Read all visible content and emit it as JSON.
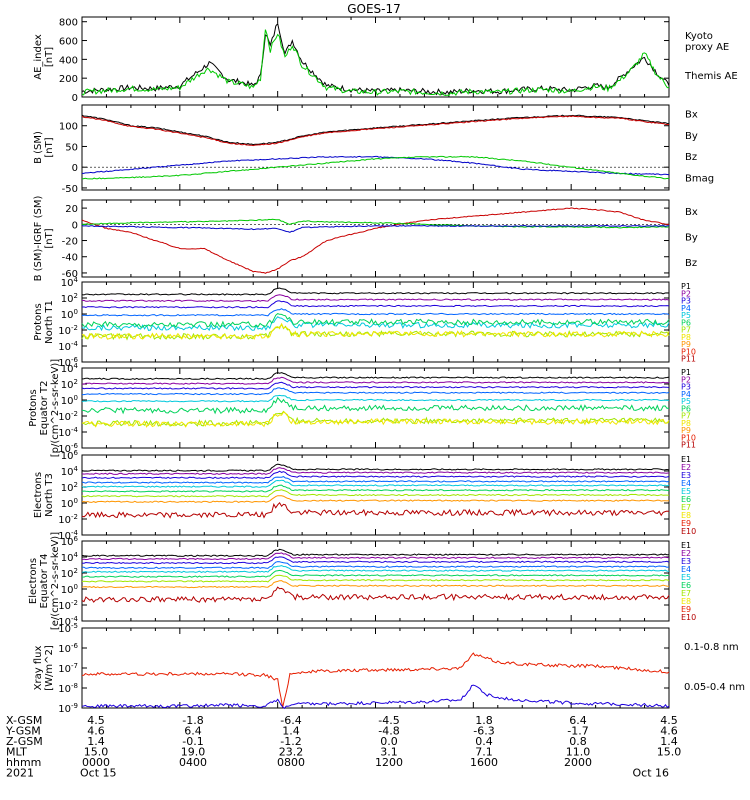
{
  "title": "GOES-17",
  "chart_data": [
    {
      "type": "line",
      "ylabel": "AE_index\n[nT]",
      "ylim": [
        0,
        850
      ],
      "yticks": [
        "800",
        "600",
        "400",
        "200",
        "0"
      ],
      "legend": [
        {
          "name": "Kyoto\nproxy AE",
          "color": "#00c800"
        },
        {
          "name": "Themis AE",
          "color": "#000000"
        }
      ],
      "series": [
        {
          "name": "Themis AE",
          "color": "#000000",
          "x": [
            0,
            1,
            2,
            3,
            4,
            5,
            5.2,
            6,
            6.5,
            7,
            7.3,
            7.5,
            7.7,
            8,
            8.3,
            8.6,
            9,
            10,
            11,
            12,
            13,
            14,
            15,
            16,
            17,
            18,
            19,
            20,
            20.5,
            21,
            21.5,
            22,
            22.5,
            23,
            23.5,
            24
          ],
          "y": [
            60,
            80,
            100,
            90,
            120,
            320,
            360,
            180,
            160,
            120,
            220,
            680,
            540,
            800,
            460,
            600,
            380,
            120,
            80,
            60,
            70,
            60,
            50,
            70,
            60,
            80,
            90,
            70,
            100,
            120,
            100,
            200,
            320,
            420,
            260,
            120
          ]
        },
        {
          "name": "Kyoto proxy AE",
          "color": "#00c800",
          "x": [
            0,
            1,
            2,
            3,
            4,
            5,
            5.2,
            6,
            6.5,
            7,
            7.3,
            7.5,
            7.7,
            8,
            8.3,
            8.6,
            9,
            10,
            11,
            12,
            13,
            14,
            15,
            16,
            17,
            18,
            19,
            20,
            20.5,
            21,
            21.5,
            22,
            22.5,
            23,
            23.5,
            24
          ],
          "y": [
            50,
            70,
            90,
            80,
            100,
            280,
            300,
            160,
            140,
            100,
            200,
            740,
            500,
            680,
            420,
            560,
            340,
            100,
            60,
            50,
            60,
            50,
            40,
            60,
            50,
            70,
            80,
            60,
            90,
            110,
            90,
            180,
            300,
            460,
            240,
            100
          ]
        }
      ]
    },
    {
      "type": "line",
      "ylabel": "B (SM)\n[nT]",
      "ylim": [
        -55,
        150
      ],
      "yticks": [
        "100",
        "50",
        "0",
        "-50"
      ],
      "legend": [
        {
          "name": "Bx",
          "color": "#0000c8"
        },
        {
          "name": "By",
          "color": "#00c800"
        },
        {
          "name": "Bz",
          "color": "#c80000"
        },
        {
          "name": "Bmag",
          "color": "#000000"
        }
      ],
      "series": [
        {
          "name": "Bmag",
          "color": "#000000",
          "x": [
            0,
            1,
            2,
            3,
            4,
            5,
            6,
            7,
            8,
            9,
            10,
            12,
            14,
            16,
            18,
            20,
            21,
            22,
            23,
            24
          ],
          "y": [
            125,
            115,
            100,
            95,
            85,
            75,
            60,
            55,
            60,
            75,
            85,
            95,
            103,
            112,
            120,
            125,
            122,
            120,
            112,
            105
          ]
        },
        {
          "name": "Bz",
          "color": "#c80000",
          "x": [
            0,
            1,
            2,
            3,
            4,
            5,
            6,
            7,
            8,
            9,
            10,
            12,
            14,
            16,
            18,
            20,
            21,
            22,
            23,
            24
          ],
          "y": [
            122,
            112,
            98,
            92,
            82,
            72,
            58,
            52,
            58,
            73,
            83,
            93,
            101,
            110,
            118,
            123,
            120,
            118,
            110,
            103
          ]
        },
        {
          "name": "Bx",
          "color": "#0000c8",
          "x": [
            0,
            2,
            4,
            6,
            8,
            10,
            12,
            14,
            16,
            18,
            20,
            22,
            24
          ],
          "y": [
            -15,
            -5,
            5,
            15,
            20,
            25,
            25,
            20,
            10,
            -5,
            -10,
            -15,
            -18
          ]
        },
        {
          "name": "By",
          "color": "#00c800",
          "x": [
            0,
            2,
            4,
            6,
            8,
            10,
            12,
            14,
            16,
            18,
            20,
            22,
            24
          ],
          "y": [
            -28,
            -25,
            -20,
            -10,
            0,
            10,
            20,
            25,
            25,
            15,
            0,
            -15,
            -28
          ]
        }
      ]
    },
    {
      "type": "line",
      "ylabel": "B (SM)-IGRF (SM)\n[nT]",
      "ylim": [
        -65,
        30
      ],
      "yticks": [
        "20",
        "0",
        "-20",
        "-40",
        "-60"
      ],
      "legend": [
        {
          "name": "Bx",
          "color": "#0000c8"
        },
        {
          "name": "By",
          "color": "#00c800"
        },
        {
          "name": "Bz",
          "color": "#c80000"
        }
      ],
      "series": [
        {
          "name": "Bz",
          "color": "#c80000",
          "x": [
            0,
            1,
            2,
            3,
            4,
            5,
            6,
            7,
            7.5,
            8,
            8.5,
            9,
            10,
            12,
            14,
            16,
            18,
            20,
            21,
            22,
            23,
            24
          ],
          "y": [
            5,
            -5,
            -10,
            -20,
            -30,
            -30,
            -45,
            -58,
            -60,
            -55,
            -45,
            -40,
            -20,
            -5,
            5,
            10,
            15,
            20,
            18,
            15,
            5,
            0
          ]
        },
        {
          "name": "By",
          "color": "#00c800",
          "x": [
            0,
            2,
            4,
            6,
            7,
            8,
            8.5,
            9,
            10,
            12,
            14,
            16,
            18,
            20,
            22,
            24
          ],
          "y": [
            0,
            2,
            3,
            4,
            5,
            6,
            0,
            4,
            3,
            2,
            0,
            -2,
            -3,
            -3,
            -4,
            -3
          ]
        },
        {
          "name": "Bx",
          "color": "#0000c8",
          "x": [
            0,
            2,
            4,
            6,
            7,
            8,
            8.5,
            9,
            10,
            12,
            14,
            16,
            18,
            20,
            22,
            24
          ],
          "y": [
            -2,
            -3,
            -4,
            -5,
            -6,
            -5,
            -10,
            -4,
            -3,
            -2,
            -2,
            -2,
            -2,
            -2,
            -2,
            -2
          ]
        }
      ]
    },
    {
      "type": "line",
      "log": true,
      "ylabel": "Protons\nNorth T1",
      "ylim": [
        -6,
        4
      ],
      "yticks": [
        "10^4",
        "10^2",
        "10^0",
        "10^-2",
        "10^-4",
        "10^-6"
      ],
      "legend": [
        {
          "name": "P1",
          "color": "#000000"
        },
        {
          "name": "P2",
          "color": "#8a00a0"
        },
        {
          "name": "P3",
          "color": "#1e00dc"
        },
        {
          "name": "P4",
          "color": "#0064ff"
        },
        {
          "name": "P5",
          "color": "#00c8dc"
        },
        {
          "name": "P6",
          "color": "#00d25a"
        },
        {
          "name": "P7",
          "color": "#a0e600"
        },
        {
          "name": "P8",
          "color": "#f0e600"
        },
        {
          "name": "P9",
          "color": "#ff9600"
        },
        {
          "name": "P10",
          "color": "#e61e00"
        },
        {
          "name": "P11",
          "color": "#b40000"
        }
      ],
      "series": [
        {
          "name": "P1",
          "color": "#000000",
          "level": 2.6
        },
        {
          "name": "P2",
          "color": "#8a00a0",
          "level": 1.8
        },
        {
          "name": "P3",
          "color": "#1e00dc",
          "level": 1.0
        },
        {
          "name": "P4",
          "color": "#0064ff",
          "level": 0.0
        },
        {
          "name": "P5",
          "color": "#00c8dc",
          "level": -1.4
        },
        {
          "name": "P6",
          "color": "#00d25a",
          "level": -1.0
        },
        {
          "name": "P7",
          "color": "#a0e600",
          "level": -2.5
        },
        {
          "name": "P8",
          "color": "#f0e600",
          "level": -2.5
        }
      ]
    },
    {
      "type": "line",
      "log": true,
      "ylabel": "Protons\nEquator T2\n[p/(cm^2-s-sr-keV)]",
      "ylim": [
        -6,
        4
      ],
      "yticks": [
        "10^4",
        "10^2",
        "10^0",
        "10^-2",
        "10^-4",
        "10^-6"
      ],
      "legend": [
        {
          "name": "P1",
          "color": "#000000"
        },
        {
          "name": "P2",
          "color": "#8a00a0"
        },
        {
          "name": "P3",
          "color": "#1e00dc"
        },
        {
          "name": "P4",
          "color": "#0064ff"
        },
        {
          "name": "P5",
          "color": "#00c8dc"
        },
        {
          "name": "P6",
          "color": "#00d25a"
        },
        {
          "name": "P7",
          "color": "#a0e600"
        },
        {
          "name": "P8",
          "color": "#f0e600"
        },
        {
          "name": "P9",
          "color": "#ff9600"
        },
        {
          "name": "P10",
          "color": "#e61e00"
        },
        {
          "name": "P11",
          "color": "#b40000"
        }
      ],
      "series": [
        {
          "name": "P1",
          "color": "#000000",
          "level": 2.8
        },
        {
          "name": "P2",
          "color": "#8a00a0",
          "level": 2.2
        },
        {
          "name": "P3",
          "color": "#1e00dc",
          "level": 1.6
        },
        {
          "name": "P4",
          "color": "#0064ff",
          "level": 0.9
        },
        {
          "name": "P5",
          "color": "#00c8dc",
          "level": 0.0
        },
        {
          "name": "P6",
          "color": "#00d25a",
          "level": -1.0
        },
        {
          "name": "P7",
          "color": "#a0e600",
          "level": -2.6
        },
        {
          "name": "P8",
          "color": "#f0e600",
          "level": -2.7
        }
      ]
    },
    {
      "type": "line",
      "log": true,
      "ylabel": "Electrons\nNorth T3",
      "ylim": [
        -4,
        6
      ],
      "yticks": [
        "10^6",
        "10^4",
        "10^2",
        "10^0",
        "10^-2",
        "10^-4"
      ],
      "legend": [
        {
          "name": "E1",
          "color": "#000000"
        },
        {
          "name": "E2",
          "color": "#8a00a0"
        },
        {
          "name": "E3",
          "color": "#1e00dc"
        },
        {
          "name": "E4",
          "color": "#0064ff"
        },
        {
          "name": "E5",
          "color": "#00c8dc"
        },
        {
          "name": "E6",
          "color": "#00d25a"
        },
        {
          "name": "E7",
          "color": "#a0e600"
        },
        {
          "name": "E8",
          "color": "#f0e600"
        },
        {
          "name": "E9",
          "color": "#e61e00"
        },
        {
          "name": "E10",
          "color": "#b40000"
        }
      ],
      "series": [
        {
          "name": "E1",
          "color": "#000000",
          "level": 4.2
        },
        {
          "name": "E2",
          "color": "#8a00a0",
          "level": 3.8
        },
        {
          "name": "E3",
          "color": "#1e00dc",
          "level": 3.3
        },
        {
          "name": "E4",
          "color": "#0064ff",
          "level": 2.7
        },
        {
          "name": "E5",
          "color": "#00c8dc",
          "level": 2.2
        },
        {
          "name": "E6",
          "color": "#00d25a",
          "level": 1.6
        },
        {
          "name": "E7",
          "color": "#a0e600",
          "level": 1.0
        },
        {
          "name": "E8",
          "color": "#ff9600",
          "level": 0.3
        },
        {
          "name": "E9",
          "color": "#b40000",
          "level": -1.2
        }
      ]
    },
    {
      "type": "line",
      "log": true,
      "ylabel": "Electrons\nEquator T4\n[e/(cm^2-s-sr-keV)]",
      "ylim": [
        -4,
        6
      ],
      "yticks": [
        "10^6",
        "10^4",
        "10^2",
        "10^0",
        "10^-2",
        "10^-4"
      ],
      "legend": [
        {
          "name": "E1",
          "color": "#000000"
        },
        {
          "name": "E2",
          "color": "#8a00a0"
        },
        {
          "name": "E3",
          "color": "#1e00dc"
        },
        {
          "name": "E4",
          "color": "#0064ff"
        },
        {
          "name": "E5",
          "color": "#00c8dc"
        },
        {
          "name": "E6",
          "color": "#00d25a"
        },
        {
          "name": "E7",
          "color": "#a0e600"
        },
        {
          "name": "E8",
          "color": "#f0e600"
        },
        {
          "name": "E9",
          "color": "#e61e00"
        },
        {
          "name": "E10",
          "color": "#b40000"
        }
      ],
      "series": [
        {
          "name": "E1",
          "color": "#000000",
          "level": 4.3
        },
        {
          "name": "E2",
          "color": "#8a00a0",
          "level": 3.9
        },
        {
          "name": "E3",
          "color": "#1e00dc",
          "level": 3.4
        },
        {
          "name": "E4",
          "color": "#0064ff",
          "level": 2.8
        },
        {
          "name": "E5",
          "color": "#00c8dc",
          "level": 2.3
        },
        {
          "name": "E6",
          "color": "#00d25a",
          "level": 1.7
        },
        {
          "name": "E7",
          "color": "#a0e600",
          "level": 1.1
        },
        {
          "name": "E8",
          "color": "#ff9600",
          "level": 0.4
        },
        {
          "name": "E9",
          "color": "#b40000",
          "level": -1.0
        }
      ]
    },
    {
      "type": "line",
      "log": true,
      "ylabel": "Xray flux\n[W/m^2]",
      "ylim": [
        -9,
        -5
      ],
      "yticks": [
        "10^-5",
        "10^-6",
        "10^-7",
        "10^-8",
        "10^-9"
      ],
      "legend": [
        {
          "name": "0.1-0.8 nm",
          "color": "#e61e00"
        },
        {
          "name": "0.05-0.4 nm",
          "color": "#1e00dc"
        }
      ],
      "series": [
        {
          "name": "0.1-0.8 nm",
          "color": "#e61e00",
          "x": [
            0,
            2,
            4,
            6,
            7.5,
            8,
            8.2,
            8.5,
            9,
            10,
            12,
            14,
            15.5,
            16,
            16.5,
            17,
            18,
            20,
            21,
            22,
            23,
            24
          ],
          "y": [
            -7.3,
            -7.3,
            -7.3,
            -7.3,
            -7.35,
            -7.6,
            -9.0,
            -7.3,
            -7.2,
            -7.15,
            -7.1,
            -7.05,
            -7.0,
            -6.3,
            -6.5,
            -6.7,
            -6.8,
            -6.9,
            -6.9,
            -7.0,
            -7.1,
            -7.2
          ]
        },
        {
          "name": "0.05-0.4 nm",
          "color": "#1e00dc",
          "x": [
            0,
            2,
            4,
            6,
            7.5,
            8,
            8.2,
            8.5,
            9,
            10,
            12,
            14,
            15.5,
            16,
            16.5,
            17,
            18,
            20,
            21,
            22,
            23,
            24
          ],
          "y": [
            -8.9,
            -8.9,
            -8.9,
            -8.85,
            -8.9,
            -8.6,
            -9.0,
            -8.85,
            -8.8,
            -8.8,
            -8.75,
            -8.7,
            -8.6,
            -7.8,
            -8.3,
            -8.5,
            -8.6,
            -8.75,
            -8.8,
            -8.8,
            -8.85,
            -8.9
          ]
        }
      ]
    }
  ],
  "x_axis": {
    "row_labels": [
      "X-GSM",
      "Y-GSM",
      "Z-GSM",
      "MLT",
      "hhmm",
      "2021"
    ],
    "columns": [
      [
        "4.5",
        "4.6",
        "1.4",
        "15.0",
        "0000",
        "Oct 15"
      ],
      [
        "-1.8",
        "6.4",
        "-0.1",
        "19.0",
        "0400",
        ""
      ],
      [
        "-6.4",
        "1.4",
        "-1.2",
        "23.2",
        "0800",
        ""
      ],
      [
        "-4.5",
        "-4.8",
        "0.0",
        "3.1",
        "1200",
        ""
      ],
      [
        "1.8",
        "-6.3",
        "0.4",
        "7.1",
        "1600",
        ""
      ],
      [
        "6.4",
        "-1.7",
        "0.8",
        "11.0",
        "2000",
        ""
      ],
      [
        "4.5",
        "4.6",
        "1.4",
        "15.0",
        "",
        "Oct 16"
      ]
    ]
  }
}
